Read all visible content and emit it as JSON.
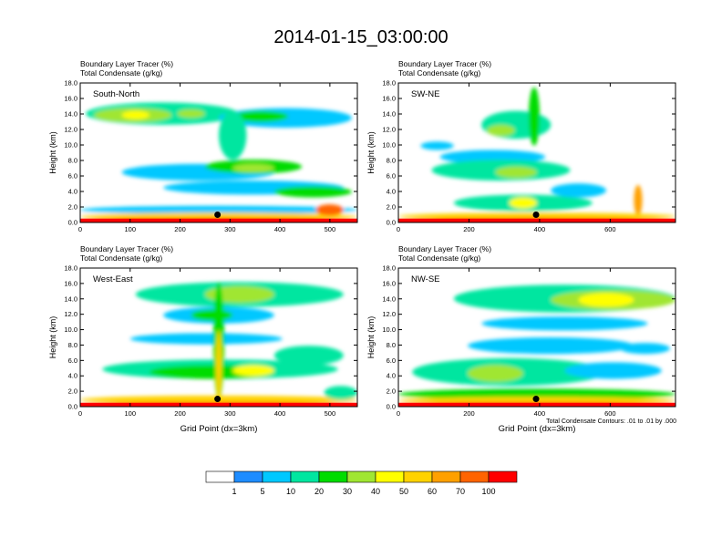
{
  "page_title": "2014-01-15_03:00:00",
  "chart_data": [
    {
      "type": "heatmap",
      "cross_section": "South-North",
      "title_lines": [
        "Boundary Layer Tracer   (%)",
        "Total Condensate   (g/kg)"
      ],
      "ylabel": "Height (km)",
      "xlabel": "",
      "xlim": [
        0,
        555
      ],
      "ylim": [
        0,
        18
      ],
      "x_ticks": [
        0,
        100,
        200,
        300,
        400,
        500
      ],
      "x_tick_labels": [
        "0",
        "100",
        "200",
        "300",
        "400",
        "500"
      ],
      "y_ticks": [
        0,
        2,
        4,
        6,
        8,
        10,
        12,
        14,
        16,
        18
      ],
      "y_tick_labels": [
        "0.0",
        "2.0",
        "4.0",
        "6.0",
        "8.0",
        "10.0",
        "12.0",
        "14.0",
        "16.0",
        "18.0"
      ],
      "marker": {
        "x": 275,
        "y": 1.0
      }
    },
    {
      "type": "heatmap",
      "cross_section": "SW-NE",
      "title_lines": [
        "Boundary Layer Tracer   (%)",
        "Total Condensate   (g/kg)"
      ],
      "ylabel": "Height (km)",
      "xlabel": "",
      "xlim": [
        0,
        785
      ],
      "ylim": [
        0,
        18
      ],
      "x_ticks": [
        0,
        200,
        400,
        600
      ],
      "x_tick_labels": [
        "0",
        "200",
        "400",
        "600"
      ],
      "y_ticks": [
        0,
        2,
        4,
        6,
        8,
        10,
        12,
        14,
        16,
        18
      ],
      "y_tick_labels": [
        "0.0",
        "2.0",
        "4.0",
        "6.0",
        "8.0",
        "10.0",
        "12.0",
        "14.0",
        "16.0",
        "18.0"
      ],
      "marker": {
        "x": 390,
        "y": 1.0
      }
    },
    {
      "type": "heatmap",
      "cross_section": "West-East",
      "title_lines": [
        "Boundary Layer Tracer   (%)",
        "Total Condensate   (g/kg)"
      ],
      "ylabel": "Height (km)",
      "xlabel": "Grid Point (dx=3km)",
      "xlim": [
        0,
        555
      ],
      "ylim": [
        0,
        18
      ],
      "x_ticks": [
        0,
        100,
        200,
        300,
        400,
        500
      ],
      "x_tick_labels": [
        "0",
        "100",
        "200",
        "300",
        "400",
        "500"
      ],
      "y_ticks": [
        0,
        2,
        4,
        6,
        8,
        10,
        12,
        14,
        16,
        18
      ],
      "y_tick_labels": [
        "0.0",
        "2.0",
        "4.0",
        "6.0",
        "8.0",
        "10.0",
        "12.0",
        "14.0",
        "16.0",
        "18.0"
      ],
      "marker": {
        "x": 275,
        "y": 1.0
      }
    },
    {
      "type": "heatmap",
      "cross_section": "NW-SE",
      "title_lines": [
        "Boundary Layer Tracer   (%)",
        "Total Condensate   (g/kg)"
      ],
      "ylabel": "Height (km)",
      "xlabel": "Grid Point (dx=3km)",
      "xlim": [
        0,
        785
      ],
      "ylim": [
        0,
        18
      ],
      "x_ticks": [
        0,
        200,
        400,
        600
      ],
      "x_tick_labels": [
        "0",
        "200",
        "400",
        "600"
      ],
      "y_ticks": [
        0,
        2,
        4,
        6,
        8,
        10,
        12,
        14,
        16,
        18
      ],
      "y_tick_labels": [
        "0.0",
        "2.0",
        "4.0",
        "6.0",
        "8.0",
        "10.0",
        "12.0",
        "14.0",
        "16.0",
        "18.0"
      ],
      "marker": {
        "x": 390,
        "y": 1.0
      },
      "note": "Total Condensate Contours: .01 to .01 by .000"
    }
  ],
  "colorbar": {
    "colors": [
      "#ffffff",
      "#1e8cff",
      "#00c8ff",
      "#00e6a0",
      "#00dc00",
      "#a0e632",
      "#ffff00",
      "#ffd200",
      "#ffa000",
      "#ff6400",
      "#ff0000"
    ],
    "labels": [
      "1",
      "5",
      "10",
      "20",
      "30",
      "40",
      "50",
      "60",
      "70",
      "100"
    ]
  }
}
